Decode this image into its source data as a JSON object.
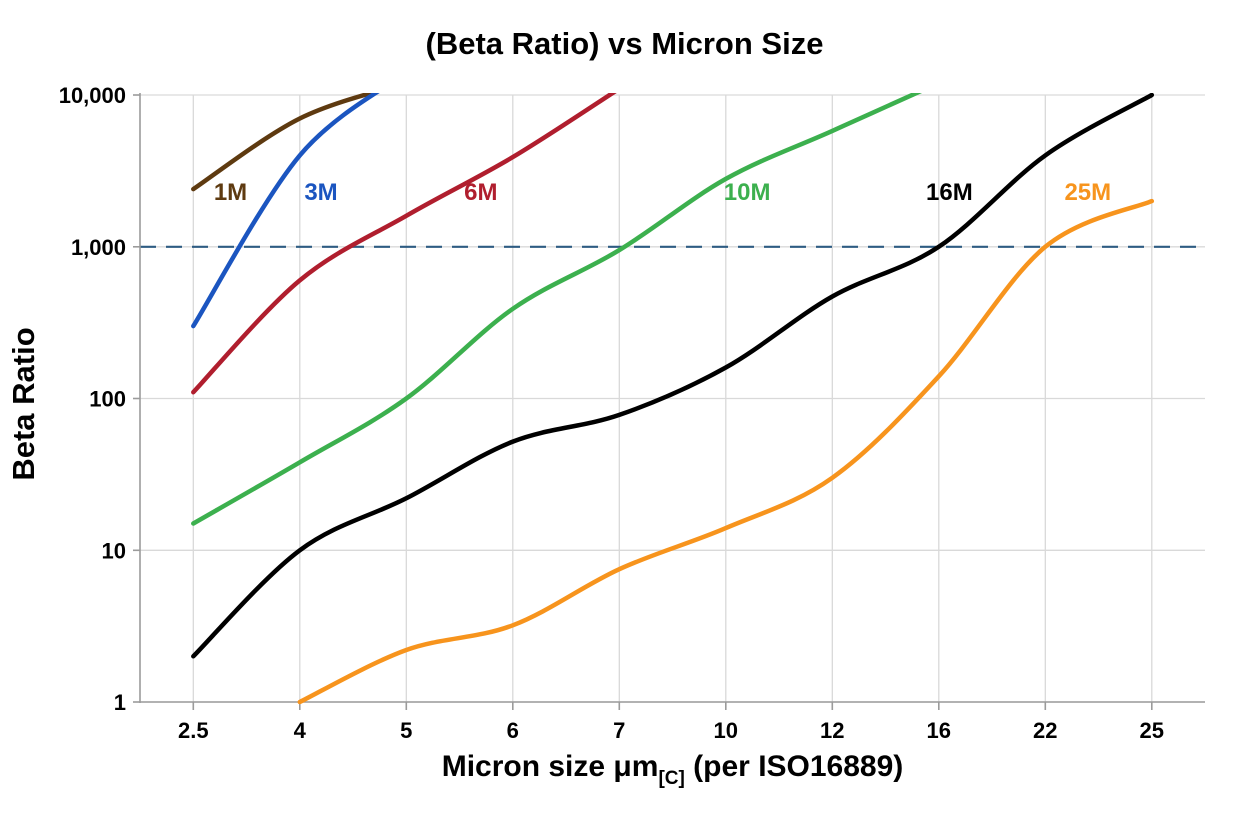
{
  "title": "(Beta Ratio) vs Micron Size",
  "chart_data": {
    "type": "line",
    "title": "(Beta Ratio) vs Micron Size",
    "xlabel": "Micron size μm[C] (per ISO16889)",
    "xlabel_main": "Micron size μm",
    "xlabel_sub": "[C]",
    "xlabel_tail": " (per ISO16889)",
    "ylabel": "Beta Ratio",
    "y_scale": "log",
    "ylim": [
      1,
      10000
    ],
    "y_ticks": [
      {
        "value": 1,
        "label": "1"
      },
      {
        "value": 10,
        "label": "10"
      },
      {
        "value": 100,
        "label": "100"
      },
      {
        "value": 1000,
        "label": "1,000"
      },
      {
        "value": 10000,
        "label": "10,000"
      }
    ],
    "x_categories": [
      "2.5",
      "4",
      "5",
      "6",
      "7",
      "10",
      "12",
      "16",
      "22",
      "25"
    ],
    "grid": true,
    "grid_color": "#d9d9d9",
    "axis_color": "#9b9b9b",
    "reference_line": {
      "value": 1000,
      "style": "dashed",
      "color": "#2e5c82",
      "width": 2.2
    },
    "series": [
      {
        "name": "1M",
        "color": "#5e3a10",
        "values": [
          2400,
          7000,
          12000,
          null,
          null,
          null,
          null,
          null,
          null,
          null
        ],
        "label": {
          "text": "1M",
          "x_index": 0.35,
          "y": 2300
        }
      },
      {
        "name": "3M",
        "color": "#1b55c0",
        "values": [
          300,
          4000,
          14000,
          null,
          null,
          null,
          null,
          null,
          null,
          null
        ],
        "label": {
          "text": "3M",
          "x_index": 1.2,
          "y": 2300
        }
      },
      {
        "name": "6M",
        "color": "#b01e2e",
        "values": [
          110,
          600,
          1600,
          3900,
          11000,
          null,
          null,
          null,
          null,
          null
        ],
        "label": {
          "text": "6M",
          "x_index": 2.7,
          "y": 2300
        }
      },
      {
        "name": "10M",
        "color": "#3cb04e",
        "values": [
          15,
          38,
          100,
          390,
          950,
          2800,
          5800,
          12000,
          null,
          null
        ],
        "label": {
          "text": "10M",
          "x_index": 5.2,
          "y": 2300
        }
      },
      {
        "name": "16M",
        "color": "#000000",
        "values": [
          2,
          10,
          22,
          52,
          78,
          160,
          470,
          1000,
          4000,
          10000
        ],
        "label": {
          "text": "16M",
          "x_index": 7.1,
          "y": 2300
        }
      },
      {
        "name": "25M",
        "color": "#f7941d",
        "values": [
          null,
          1,
          2.2,
          3.2,
          7.5,
          14,
          30,
          140,
          1000,
          2000
        ],
        "label": {
          "text": "25M",
          "x_index": 8.4,
          "y": 2300
        }
      }
    ]
  }
}
